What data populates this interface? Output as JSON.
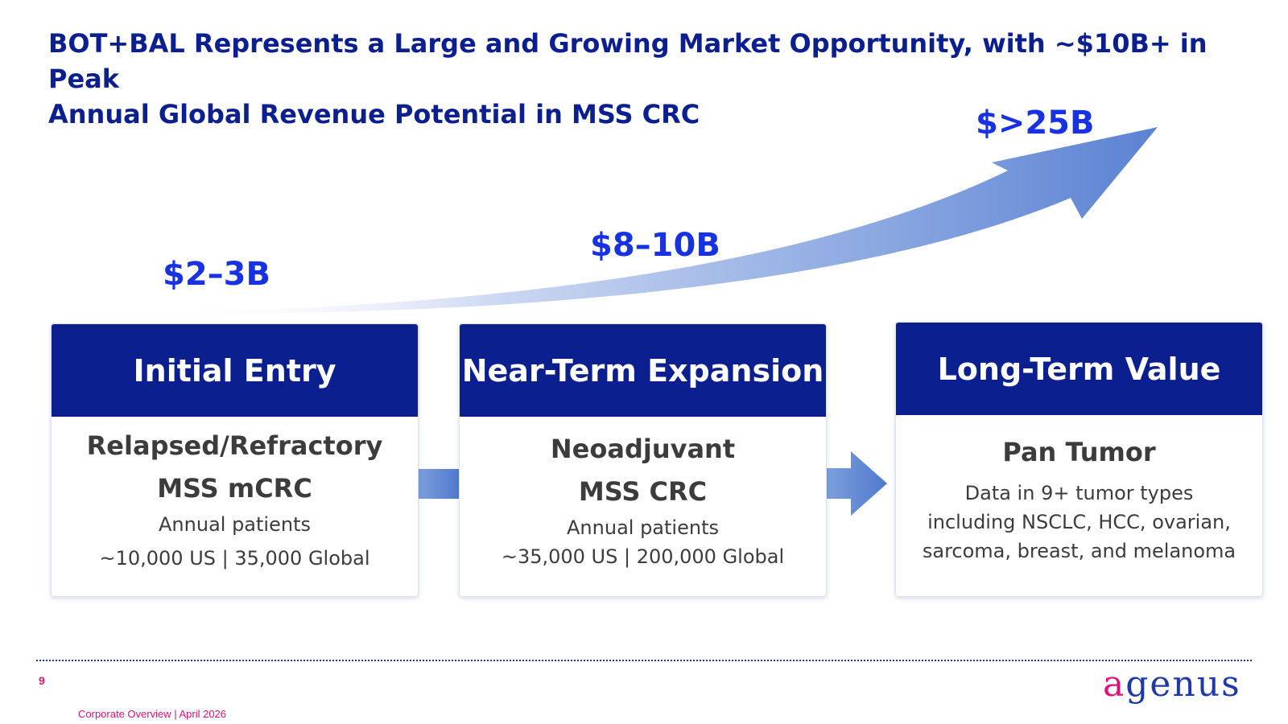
{
  "title": {
    "line1": "BOT+BAL Represents a Large and Growing Market Opportunity, with ~$10B+ in Peak",
    "line2": "Annual Global Revenue Potential in MSS CRC"
  },
  "values": {
    "initial": "$2–3B",
    "near_term": "$8–10B",
    "long_term": "$>25B"
  },
  "cards": [
    {
      "header": "Initial Entry",
      "subhead_1": "Relapsed/Refractory",
      "subhead_2": "MSS mCRC",
      "line_1": "Annual patients",
      "line_2": "~10,000 US | 35,000 Global"
    },
    {
      "header": "Near-Term Expansion",
      "subhead_1": "Neoadjuvant",
      "subhead_2": "MSS CRC",
      "line_1": "Annual patients",
      "line_2": "~35,000 US | 200,000 Global"
    },
    {
      "header": "Long-Term Value",
      "subhead_1": "Pan Tumor",
      "line_1": "Data in 9+ tumor types",
      "line_2": "including NSCLC, HCC, ovarian,",
      "line_3": "sarcoma, breast, and melanoma"
    }
  ],
  "footer": {
    "page_number": "9",
    "text": "Corporate Overview | April 2026",
    "logo": "agenus"
  },
  "colors": {
    "navy": "#0b1f8f",
    "value_blue": "#1732e0",
    "arrow_blue": "#5b82d2",
    "accent_pink": "#e0107a"
  }
}
